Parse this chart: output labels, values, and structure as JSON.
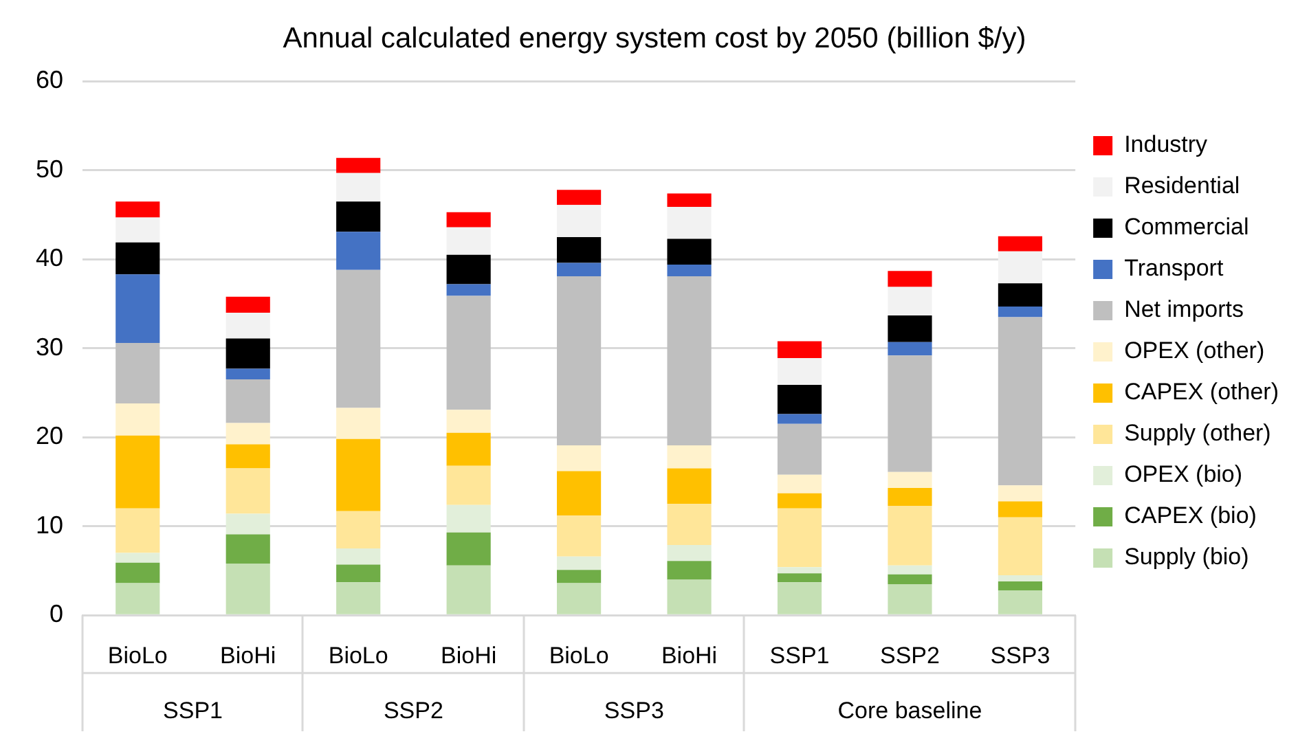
{
  "chart_data": {
    "type": "bar",
    "title": "Annual calculated energy system cost by 2050 (billion $/y)",
    "categories": [
      "BioLo",
      "BioHi",
      "BioLo",
      "BioHi",
      "BioLo",
      "BioHi",
      "SSP1",
      "SSP2",
      "SSP3"
    ],
    "annotations": [
      "SSP1",
      "SSP2",
      "SSP3",
      "Core baseline"
    ],
    "stacked": true,
    "ylim": [
      0,
      60
    ],
    "yticks": [
      0,
      10,
      20,
      30,
      40,
      50,
      60
    ],
    "grid": "y",
    "legend": "right",
    "series": [
      {
        "name": "Supply (bio)",
        "color": "#c5e0b4",
        "values": [
          3.6,
          5.8,
          3.7,
          5.6,
          3.6,
          4.0,
          3.7,
          3.5,
          2.8
        ]
      },
      {
        "name": "CAPEX (bio)",
        "color": "#70ad47",
        "values": [
          2.3,
          3.3,
          2.0,
          3.7,
          1.5,
          2.1,
          1.0,
          1.1,
          1.0
        ]
      },
      {
        "name": "OPEX (bio)",
        "color": "#e2efda",
        "values": [
          1.1,
          2.3,
          1.8,
          3.1,
          1.5,
          1.8,
          0.7,
          1.0,
          0.7
        ]
      },
      {
        "name": "Supply (other)",
        "color": "#ffe699",
        "values": [
          5.0,
          5.1,
          4.2,
          4.4,
          4.6,
          4.6,
          6.6,
          6.7,
          6.5
        ]
      },
      {
        "name": "CAPEX (other)",
        "color": "#ffc000",
        "values": [
          8.2,
          2.7,
          8.1,
          3.7,
          5.0,
          4.0,
          1.7,
          2.0,
          1.8
        ]
      },
      {
        "name": "OPEX (other)",
        "color": "#fff2cc",
        "values": [
          3.6,
          2.4,
          3.5,
          2.6,
          2.9,
          2.6,
          2.1,
          1.8,
          1.8
        ]
      },
      {
        "name": "Net imports",
        "color": "#bfbfbf",
        "values": [
          6.8,
          4.9,
          15.5,
          12.8,
          19.0,
          19.0,
          5.7,
          13.1,
          18.9
        ]
      },
      {
        "name": "Transport",
        "color": "#4472c4",
        "values": [
          7.7,
          1.2,
          4.3,
          1.3,
          1.5,
          1.3,
          1.1,
          1.5,
          1.2
        ]
      },
      {
        "name": "Commercial",
        "color": "#000000",
        "values": [
          3.6,
          3.4,
          3.4,
          3.3,
          2.9,
          2.9,
          3.3,
          3.0,
          2.6
        ]
      },
      {
        "name": "Residential",
        "color": "#f2f2f2",
        "values": [
          2.8,
          2.9,
          3.2,
          3.1,
          3.6,
          3.6,
          3.0,
          3.2,
          3.6
        ]
      },
      {
        "name": "Industry",
        "color": "#ff0000",
        "values": [
          1.8,
          1.8,
          1.7,
          1.7,
          1.7,
          1.5,
          1.9,
          1.8,
          1.7
        ]
      }
    ]
  }
}
